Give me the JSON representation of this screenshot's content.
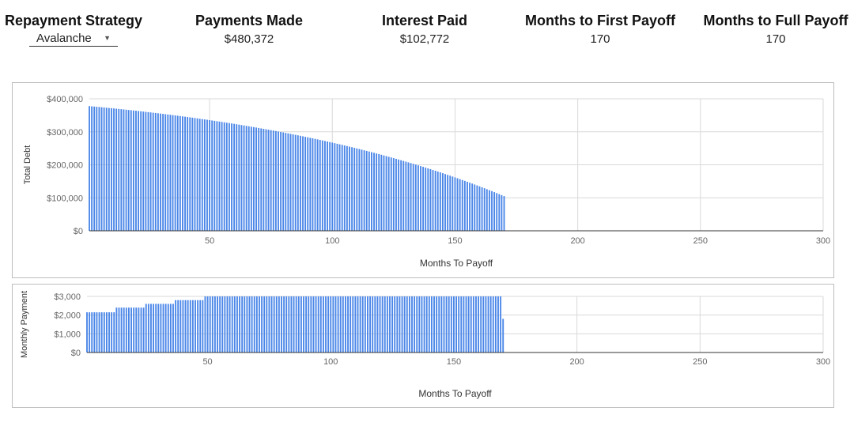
{
  "header": {
    "strategy": {
      "title": "Repayment Strategy",
      "selected": "Avalanche",
      "arrow_icon": "caret-down-icon"
    },
    "payments_made": {
      "title": "Payments Made",
      "value": "$480,372"
    },
    "interest_paid": {
      "title": "Interest Paid",
      "value": "$102,772"
    },
    "first_payoff": {
      "title": "Months to First Payoff",
      "value": "170"
    },
    "full_payoff": {
      "title": "Months to Full Payoff",
      "value": "170"
    }
  },
  "colors": {
    "bar": "#4a86e8",
    "grid": "#d9d9d9",
    "axis": "#333333",
    "label": "#666666"
  },
  "chart_data": [
    {
      "type": "bar",
      "xlabel": "Months To Payoff",
      "ylabel": "Total Debt",
      "xlim": [
        1,
        300
      ],
      "ylim": [
        0,
        400000
      ],
      "xticks": [
        50,
        100,
        150,
        200,
        250,
        300
      ],
      "yticks": [
        0,
        100000,
        200000,
        300000,
        400000
      ],
      "ytick_labels": [
        "$0",
        "$100,000",
        "$200,000",
        "$300,000",
        "$400,000"
      ],
      "grid": true,
      "series": [
        {
          "values": [
            377845,
            377172,
            376492,
            375804,
            375109,
            374407,
            373697,
            372980,
            372255,
            371522,
            370782,
            370034,
            369278,
            368515,
            367743,
            366964,
            366177,
            365381,
            364578,
            363766,
            362946,
            362118,
            361282,
            360438,
            359585,
            358724,
            357854,
            356976,
            356089,
            355194,
            354290,
            353378,
            352457,
            351526,
            350587,
            349640,
            348683,
            347717,
            346742,
            345757,
            344764,
            343761,
            342749,
            341727,
            340696,
            339655,
            338605,
            337544,
            336474,
            335395,
            334305,
            333205,
            332095,
            330975,
            329845,
            328705,
            327554,
            326393,
            325221,
            324039,
            322846,
            321643,
            320429,
            319204,
            317968,
            316721,
            315463,
            314193,
            312913,
            311621,
            310318,
            309003,
            307677,
            306339,
            304989,
            303627,
            302254,
            300868,
            299470,
            298061,
            296638,
            295204,
            293757,
            292297,
            290825,
            289340,
            287842,
            286332,
            284808,
            283271,
            281721,
            280157,
            278580,
            276989,
            275384,
            273765,
            272133,
            270486,
            268826,
            267150,
            265461,
            263757,
            262038,
            260304,
            258555,
            256791,
            255012,
            253217,
            251406,
            249580,
            247737,
            245879,
            244004,
            242113,
            240206,
            238282,
            236341,
            234383,
            232408,
            230416,
            228407,
            226380,
            224335,
            222273,
            220192,
            218094,
            215977,
            213841,
            211687,
            209514,
            207321,
            205110,
            202879,
            200629,
            198359,
            196069,
            193758,
            191428,
            189077,
            186706,
            184313,
            181900,
            179465,
            177009,
            174532,
            172033,
            169512,
            166969,
            164404,
            161817,
            159207,
            156574,
            153918,
            151239,
            148537,
            145811,
            143061,
            140288,
            137490,
            134668,
            131821,
            128949,
            126052,
            123129,
            120181,
            117206,
            114206,
            111179,
            108126,
            105046
          ]
        }
      ]
    },
    {
      "type": "bar",
      "xlabel": "Months To Payoff",
      "ylabel": "Monthly Payment",
      "xlim": [
        1,
        300
      ],
      "ylim": [
        0,
        3000
      ],
      "xticks": [
        50,
        100,
        150,
        200,
        250,
        300
      ],
      "yticks": [
        0,
        1000,
        2000,
        3000
      ],
      "ytick_labels": [
        "$0",
        "$1,000",
        "$2,000",
        "$3,000"
      ],
      "grid": true,
      "series": [
        {
          "values": [
            2150,
            2150,
            2150,
            2150,
            2150,
            2150,
            2150,
            2150,
            2150,
            2150,
            2150,
            2150,
            2400,
            2400,
            2400,
            2400,
            2400,
            2400,
            2400,
            2400,
            2400,
            2400,
            2400,
            2400,
            2600,
            2600,
            2600,
            2600,
            2600,
            2600,
            2600,
            2600,
            2600,
            2600,
            2600,
            2600,
            2800,
            2800,
            2800,
            2800,
            2800,
            2800,
            2800,
            2800,
            2800,
            2800,
            2800,
            2800,
            3000,
            3000,
            3000,
            3000,
            3000,
            3000,
            3000,
            3000,
            3000,
            3000,
            3000,
            3000,
            3000,
            3000,
            3000,
            3000,
            3000,
            3000,
            3000,
            3000,
            3000,
            3000,
            3000,
            3000,
            3000,
            3000,
            3000,
            3000,
            3000,
            3000,
            3000,
            3000,
            3000,
            3000,
            3000,
            3000,
            3000,
            3000,
            3000,
            3000,
            3000,
            3000,
            3000,
            3000,
            3000,
            3000,
            3000,
            3000,
            3000,
            3000,
            3000,
            3000,
            3000,
            3000,
            3000,
            3000,
            3000,
            3000,
            3000,
            3000,
            3000,
            3000,
            3000,
            3000,
            3000,
            3000,
            3000,
            3000,
            3000,
            3000,
            3000,
            3000,
            3000,
            3000,
            3000,
            3000,
            3000,
            3000,
            3000,
            3000,
            3000,
            3000,
            3000,
            3000,
            3000,
            3000,
            3000,
            3000,
            3000,
            3000,
            3000,
            3000,
            3000,
            3000,
            3000,
            3000,
            3000,
            3000,
            3000,
            3000,
            3000,
            3000,
            3000,
            3000,
            3000,
            3000,
            3000,
            3000,
            3000,
            3000,
            3000,
            3000,
            3000,
            3000,
            3000,
            3000,
            3000,
            3000,
            3000,
            3000,
            3000,
            1800
          ]
        }
      ]
    }
  ]
}
